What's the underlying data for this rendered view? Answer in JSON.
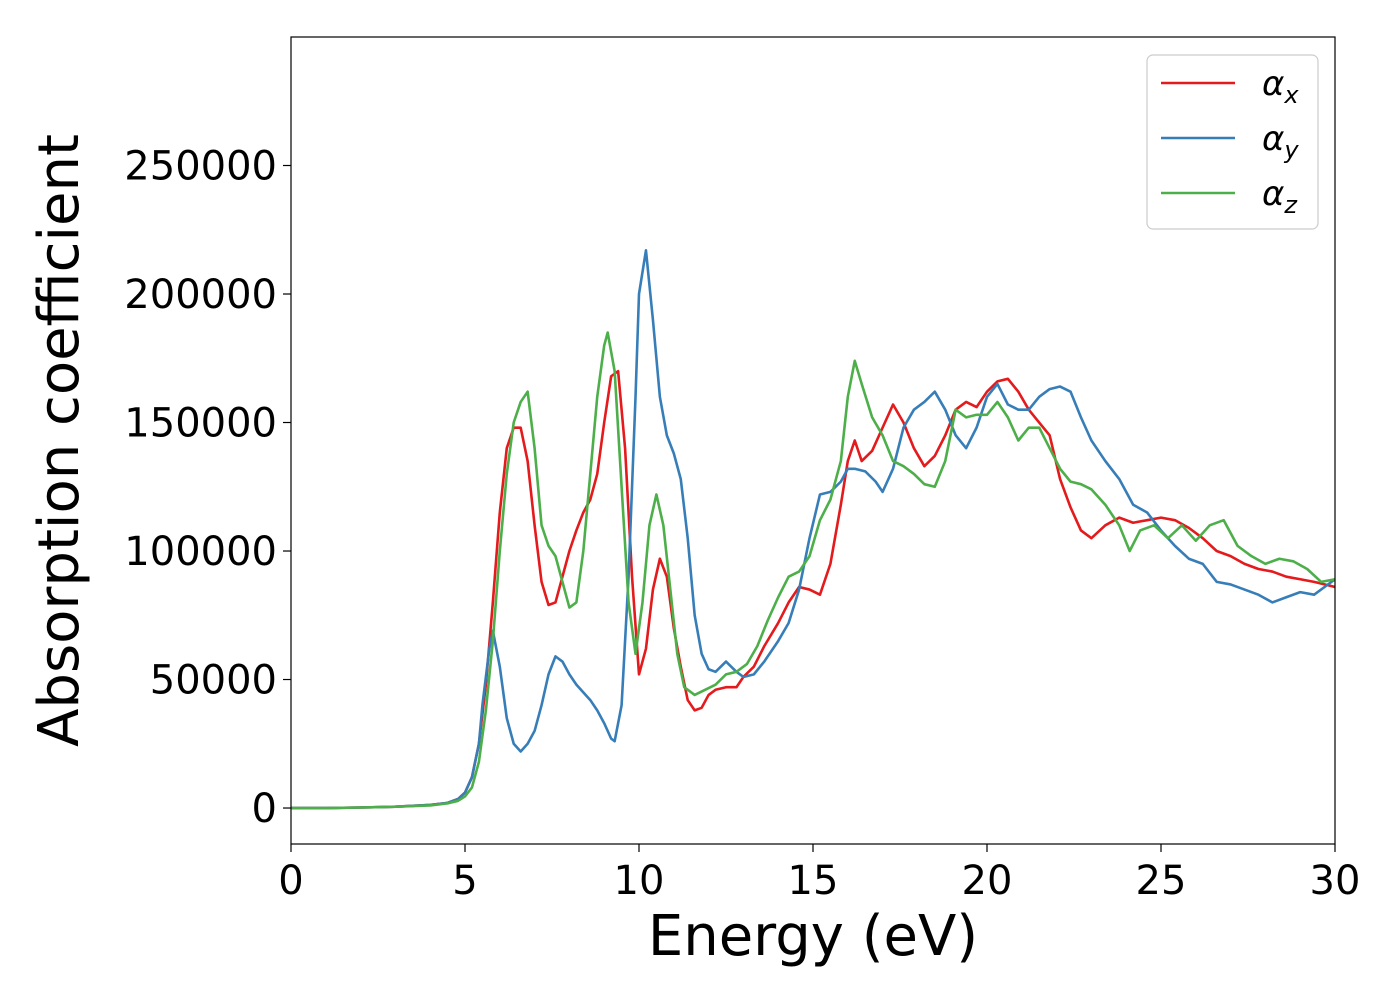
{
  "chart_data": {
    "type": "line",
    "title": "",
    "xlabel": "Energy (eV)",
    "ylabel": "Absorption coefficient",
    "xlim": [
      0,
      30
    ],
    "ylim": [
      -14000,
      300000
    ],
    "xticks": [
      0,
      5,
      10,
      15,
      20,
      25,
      30
    ],
    "yticks": [
      0,
      50000,
      100000,
      150000,
      200000,
      250000
    ],
    "grid": false,
    "legend_position": "top-right",
    "series": [
      {
        "name": "αx",
        "symbol": "α",
        "subscript": "x",
        "color": "#e41a1c",
        "x": [
          0,
          1,
          2,
          3,
          4,
          4.5,
          4.8,
          5.0,
          5.2,
          5.4,
          5.6,
          5.8,
          6.0,
          6.2,
          6.4,
          6.6,
          6.8,
          7.0,
          7.2,
          7.4,
          7.6,
          7.8,
          8.0,
          8.2,
          8.4,
          8.6,
          8.8,
          9.0,
          9.2,
          9.4,
          9.6,
          9.8,
          10.0,
          10.2,
          10.4,
          10.6,
          10.8,
          11.0,
          11.2,
          11.4,
          11.6,
          11.8,
          12.0,
          12.2,
          12.5,
          12.8,
          13.0,
          13.3,
          13.6,
          14.0,
          14.3,
          14.6,
          14.9,
          15.2,
          15.5,
          15.8,
          16.0,
          16.2,
          16.4,
          16.7,
          17.0,
          17.3,
          17.6,
          17.9,
          18.2,
          18.5,
          18.8,
          19.1,
          19.4,
          19.7,
          20.0,
          20.3,
          20.6,
          20.9,
          21.2,
          21.5,
          21.8,
          22.1,
          22.4,
          22.7,
          23.0,
          23.4,
          23.8,
          24.2,
          24.6,
          25.0,
          25.4,
          25.8,
          26.2,
          26.6,
          27.0,
          27.4,
          27.8,
          28.2,
          28.6,
          29.0,
          29.4,
          29.7,
          30.0
        ],
        "y": [
          0,
          0,
          200,
          500,
          1200,
          2000,
          3500,
          6000,
          12000,
          25000,
          48000,
          80000,
          115000,
          140000,
          148000,
          148000,
          135000,
          110000,
          88000,
          79000,
          80000,
          90000,
          100000,
          108000,
          115000,
          120000,
          130000,
          150000,
          168000,
          170000,
          140000,
          90000,
          52000,
          62000,
          85000,
          97000,
          90000,
          70000,
          55000,
          42000,
          38000,
          39000,
          44000,
          46000,
          47000,
          47000,
          51000,
          55000,
          63000,
          72000,
          80000,
          86000,
          85000,
          83000,
          95000,
          118000,
          135000,
          143000,
          135000,
          139000,
          148000,
          157000,
          150000,
          140000,
          133000,
          137000,
          145000,
          155000,
          158000,
          156000,
          162000,
          166000,
          167000,
          162000,
          155000,
          150000,
          145000,
          128000,
          117000,
          108000,
          105000,
          110000,
          113000,
          111000,
          112000,
          113000,
          112000,
          109000,
          105000,
          100000,
          98000,
          95000,
          93000,
          92000,
          90000,
          89000,
          88000,
          87000,
          86000
        ]
      },
      {
        "name": "αy",
        "symbol": "α",
        "subscript": "y",
        "color": "#377eb8",
        "x": [
          0,
          1,
          2,
          3,
          4,
          4.5,
          4.8,
          5.0,
          5.2,
          5.4,
          5.5,
          5.7,
          5.8,
          6.0,
          6.2,
          6.4,
          6.6,
          6.8,
          7.0,
          7.2,
          7.4,
          7.6,
          7.8,
          8.0,
          8.2,
          8.4,
          8.6,
          8.8,
          9.0,
          9.2,
          9.3,
          9.5,
          9.7,
          9.9,
          10.0,
          10.2,
          10.4,
          10.6,
          10.8,
          11.0,
          11.2,
          11.4,
          11.6,
          11.8,
          12.0,
          12.2,
          12.5,
          12.8,
          13.0,
          13.3,
          13.6,
          14.0,
          14.3,
          14.6,
          14.9,
          15.2,
          15.5,
          15.8,
          16.0,
          16.2,
          16.5,
          16.8,
          17.0,
          17.3,
          17.6,
          17.9,
          18.2,
          18.5,
          18.8,
          19.1,
          19.4,
          19.7,
          20.0,
          20.3,
          20.6,
          20.9,
          21.2,
          21.5,
          21.8,
          22.1,
          22.4,
          22.7,
          23.0,
          23.4,
          23.8,
          24.2,
          24.6,
          25.0,
          25.4,
          25.8,
          26.2,
          26.6,
          27.0,
          27.4,
          27.8,
          28.2,
          28.6,
          29.0,
          29.4,
          29.7,
          30.0
        ],
        "y": [
          0,
          0,
          200,
          500,
          1200,
          2000,
          3500,
          6000,
          12000,
          25000,
          40000,
          62000,
          69000,
          55000,
          35000,
          25000,
          22000,
          25000,
          30000,
          40000,
          52000,
          59000,
          57000,
          52000,
          48000,
          45000,
          42000,
          38000,
          33000,
          27000,
          26000,
          40000,
          90000,
          160000,
          200000,
          217000,
          190000,
          160000,
          145000,
          138000,
          128000,
          105000,
          75000,
          60000,
          54000,
          53000,
          57000,
          53000,
          51000,
          52000,
          57000,
          65000,
          72000,
          85000,
          105000,
          122000,
          123000,
          127000,
          132000,
          132000,
          131000,
          127000,
          123000,
          132000,
          148000,
          155000,
          158000,
          162000,
          155000,
          145000,
          140000,
          148000,
          160000,
          165000,
          157000,
          155000,
          155000,
          160000,
          163000,
          164000,
          162000,
          152000,
          143000,
          135000,
          128000,
          118000,
          115000,
          108000,
          102000,
          97000,
          95000,
          88000,
          87000,
          85000,
          83000,
          80000,
          82000,
          84000,
          83000,
          86000,
          89000
        ]
      },
      {
        "name": "αz",
        "symbol": "α",
        "subscript": "z",
        "color": "#4daf4a",
        "x": [
          0,
          1,
          2,
          3,
          4,
          4.5,
          4.8,
          5.0,
          5.2,
          5.4,
          5.6,
          5.8,
          6.0,
          6.2,
          6.4,
          6.6,
          6.8,
          7.0,
          7.2,
          7.4,
          7.6,
          7.8,
          8.0,
          8.2,
          8.4,
          8.6,
          8.8,
          9.0,
          9.1,
          9.3,
          9.5,
          9.7,
          9.9,
          10.1,
          10.3,
          10.5,
          10.7,
          10.9,
          11.1,
          11.3,
          11.6,
          11.9,
          12.2,
          12.5,
          12.8,
          13.1,
          13.4,
          13.7,
          14.0,
          14.3,
          14.6,
          14.9,
          15.2,
          15.5,
          15.8,
          16.0,
          16.2,
          16.4,
          16.7,
          17.0,
          17.3,
          17.6,
          17.9,
          18.2,
          18.5,
          18.8,
          19.1,
          19.4,
          19.7,
          20.0,
          20.3,
          20.6,
          20.9,
          21.2,
          21.5,
          21.8,
          22.1,
          22.4,
          22.7,
          23.0,
          23.4,
          23.8,
          24.1,
          24.4,
          24.8,
          25.2,
          25.6,
          26.0,
          26.4,
          26.8,
          27.2,
          27.6,
          28.0,
          28.4,
          28.8,
          29.2,
          29.6,
          30.0
        ],
        "y": [
          0,
          0,
          200,
          500,
          1000,
          1800,
          2800,
          4500,
          8000,
          18000,
          38000,
          65000,
          100000,
          130000,
          150000,
          158000,
          162000,
          140000,
          110000,
          102000,
          98000,
          88000,
          78000,
          80000,
          100000,
          130000,
          160000,
          180000,
          185000,
          170000,
          125000,
          80000,
          60000,
          80000,
          110000,
          122000,
          110000,
          85000,
          60000,
          47000,
          44000,
          46000,
          48000,
          52000,
          53000,
          56000,
          63000,
          73000,
          82000,
          90000,
          92000,
          98000,
          112000,
          120000,
          135000,
          160000,
          174000,
          165000,
          152000,
          145000,
          135000,
          133000,
          130000,
          126000,
          125000,
          135000,
          155000,
          152000,
          153000,
          153000,
          158000,
          152000,
          143000,
          148000,
          148000,
          140000,
          132000,
          127000,
          126000,
          124000,
          118000,
          110000,
          100000,
          108000,
          110000,
          105000,
          110000,
          104000,
          110000,
          112000,
          102000,
          98000,
          95000,
          97000,
          96000,
          93000,
          88000,
          89000
        ]
      }
    ]
  }
}
